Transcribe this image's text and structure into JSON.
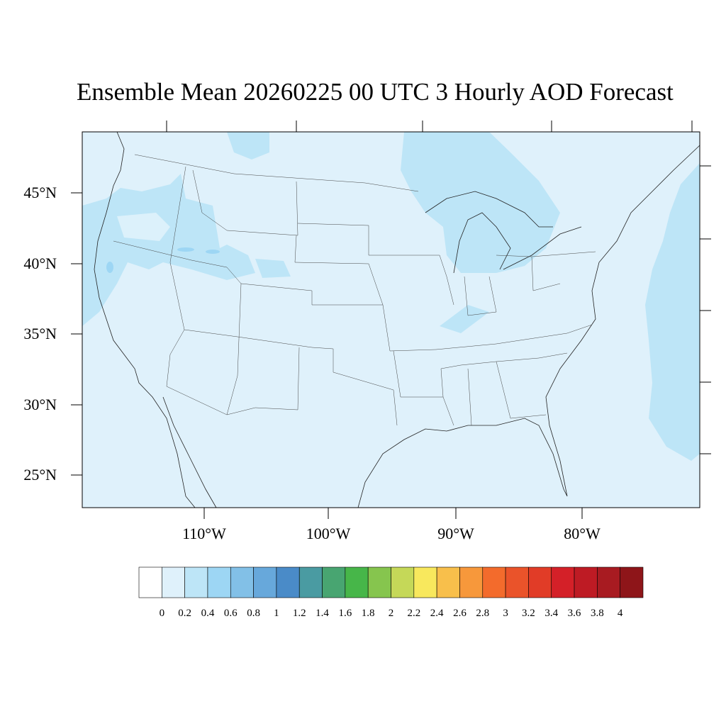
{
  "title": "Ensemble Mean 20260225 00 UTC 3 Hourly AOD Forecast",
  "lat_labels": [
    "45°N",
    "40°N",
    "35°N",
    "30°N",
    "25°N"
  ],
  "lon_labels": [
    "110°W",
    "100°W",
    "90°W",
    "80°W"
  ],
  "colorbar": {
    "labels": [
      "0",
      "0.2",
      "0.4",
      "0.6",
      "0.8",
      "1",
      "1.2",
      "1.4",
      "1.6",
      "1.8",
      "2",
      "2.2",
      "2.4",
      "2.6",
      "2.8",
      "3",
      "3.2",
      "3.4",
      "3.6",
      "3.8",
      "4"
    ],
    "colors": [
      "#ffffff",
      "#dff1fb",
      "#bde5f7",
      "#9dd6f4",
      "#82c0e7",
      "#67a8db",
      "#4a8bc8",
      "#4a9ba2",
      "#48a571",
      "#47b649",
      "#86c54e",
      "#c5d858",
      "#f8e85d",
      "#f8bf4b",
      "#f7983b",
      "#f36b2c",
      "#ea532a",
      "#e13c27",
      "#d42028",
      "#be1b24",
      "#a81b21",
      "#8e1519"
    ]
  },
  "map": {
    "background_color": "#dff1fb",
    "plume_color": "#bde5f7",
    "accent_color": "#9dd6f4"
  }
}
